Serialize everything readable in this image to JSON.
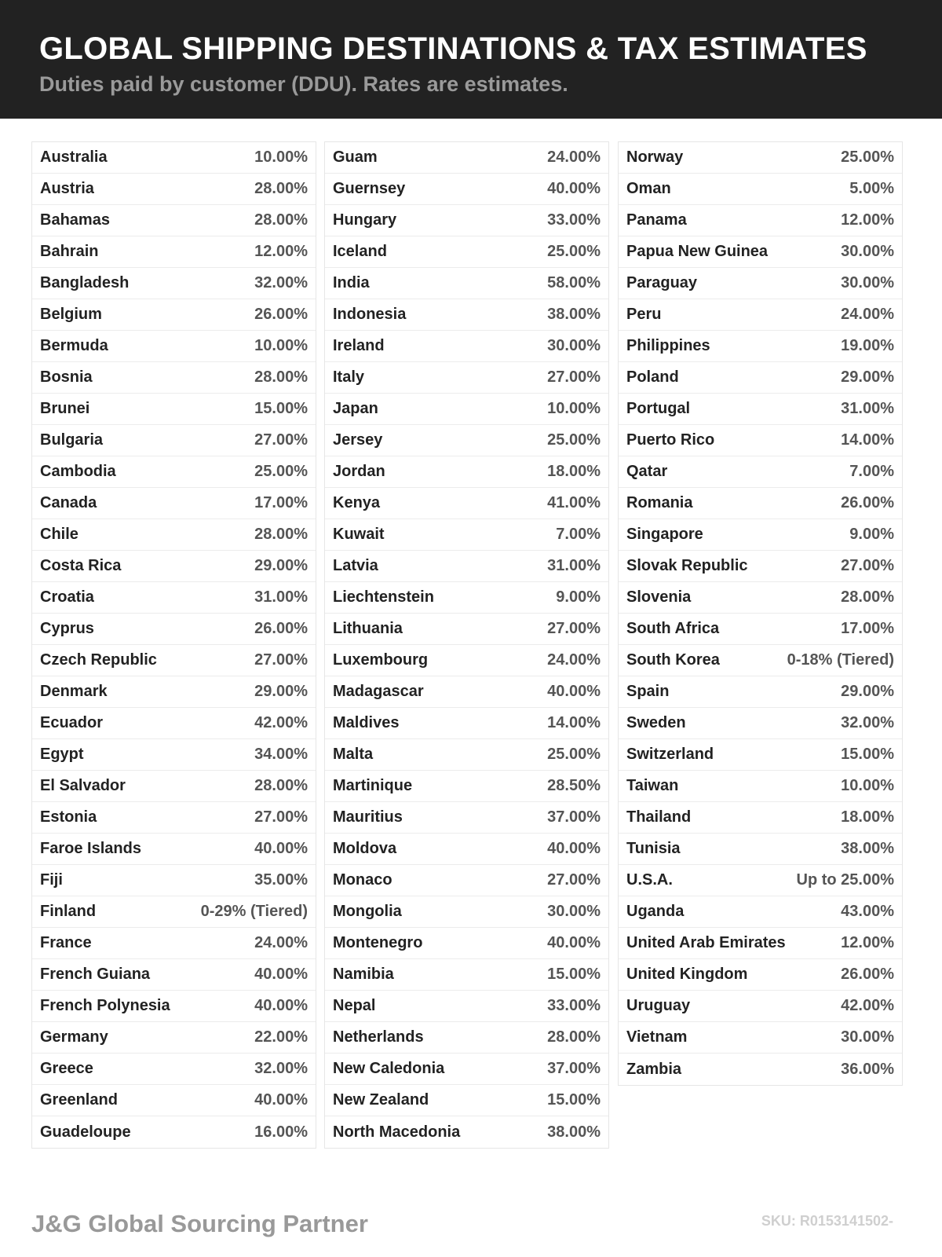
{
  "header": {
    "title": "GLOBAL SHIPPING DESTINATIONS & TAX ESTIMATES",
    "subtitle": "Duties paid by customer (DDU). Rates are estimates."
  },
  "columns": [
    [
      [
        "Australia",
        "10.00%"
      ],
      [
        "Austria",
        "28.00%"
      ],
      [
        "Bahamas",
        "28.00%"
      ],
      [
        "Bahrain",
        "12.00%"
      ],
      [
        "Bangladesh",
        "32.00%"
      ],
      [
        "Belgium",
        "26.00%"
      ],
      [
        "Bermuda",
        "10.00%"
      ],
      [
        "Bosnia",
        "28.00%"
      ],
      [
        "Brunei",
        "15.00%"
      ],
      [
        "Bulgaria",
        "27.00%"
      ],
      [
        "Cambodia",
        "25.00%"
      ],
      [
        "Canada",
        "17.00%"
      ],
      [
        "Chile",
        "28.00%"
      ],
      [
        "Costa Rica",
        "29.00%"
      ],
      [
        "Croatia",
        "31.00%"
      ],
      [
        "Cyprus",
        "26.00%"
      ],
      [
        "Czech Republic",
        "27.00%"
      ],
      [
        "Denmark",
        "29.00%"
      ],
      [
        "Ecuador",
        "42.00%"
      ],
      [
        "Egypt",
        "34.00%"
      ],
      [
        "El Salvador",
        "28.00%"
      ],
      [
        "Estonia",
        "27.00%"
      ],
      [
        "Faroe Islands",
        "40.00%"
      ],
      [
        "Fiji",
        "35.00%"
      ],
      [
        "Finland",
        "0-29% (Tiered)"
      ],
      [
        "France",
        "24.00%"
      ],
      [
        "French Guiana",
        "40.00%"
      ],
      [
        "French Polynesia",
        "40.00%"
      ],
      [
        "Germany",
        "22.00%"
      ],
      [
        "Greece",
        "32.00%"
      ],
      [
        "Greenland",
        "40.00%"
      ],
      [
        "Guadeloupe",
        "16.00%"
      ]
    ],
    [
      [
        "Guam",
        "24.00%"
      ],
      [
        "Guernsey",
        "40.00%"
      ],
      [
        "Hungary",
        "33.00%"
      ],
      [
        "Iceland",
        "25.00%"
      ],
      [
        "India",
        "58.00%"
      ],
      [
        "Indonesia",
        "38.00%"
      ],
      [
        "Ireland",
        "30.00%"
      ],
      [
        "Italy",
        "27.00%"
      ],
      [
        "Japan",
        "10.00%"
      ],
      [
        "Jersey",
        "25.00%"
      ],
      [
        "Jordan",
        "18.00%"
      ],
      [
        "Kenya",
        "41.00%"
      ],
      [
        "Kuwait",
        "7.00%"
      ],
      [
        "Latvia",
        "31.00%"
      ],
      [
        "Liechtenstein",
        "9.00%"
      ],
      [
        "Lithuania",
        "27.00%"
      ],
      [
        "Luxembourg",
        "24.00%"
      ],
      [
        "Madagascar",
        "40.00%"
      ],
      [
        "Maldives",
        "14.00%"
      ],
      [
        "Malta",
        "25.00%"
      ],
      [
        "Martinique",
        "28.50%"
      ],
      [
        "Mauritius",
        "37.00%"
      ],
      [
        "Moldova",
        "40.00%"
      ],
      [
        "Monaco",
        "27.00%"
      ],
      [
        "Mongolia",
        "30.00%"
      ],
      [
        "Montenegro",
        "40.00%"
      ],
      [
        "Namibia",
        "15.00%"
      ],
      [
        "Nepal",
        "33.00%"
      ],
      [
        "Netherlands",
        "28.00%"
      ],
      [
        "New Caledonia",
        "37.00%"
      ],
      [
        "New Zealand",
        "15.00%"
      ],
      [
        "North Macedonia",
        "38.00%"
      ]
    ],
    [
      [
        "Norway",
        "25.00%"
      ],
      [
        "Oman",
        "5.00%"
      ],
      [
        "Panama",
        "12.00%"
      ],
      [
        "Papua New Guinea",
        "30.00%"
      ],
      [
        "Paraguay",
        "30.00%"
      ],
      [
        "Peru",
        "24.00%"
      ],
      [
        "Philippines",
        "19.00%"
      ],
      [
        "Poland",
        "29.00%"
      ],
      [
        "Portugal",
        "31.00%"
      ],
      [
        "Puerto Rico",
        "14.00%"
      ],
      [
        "Qatar",
        "7.00%"
      ],
      [
        "Romania",
        "26.00%"
      ],
      [
        "Singapore",
        "9.00%"
      ],
      [
        "Slovak Republic",
        "27.00%"
      ],
      [
        "Slovenia",
        "28.00%"
      ],
      [
        "South Africa",
        "17.00%"
      ],
      [
        "South Korea",
        "0-18% (Tiered)"
      ],
      [
        "Spain",
        "29.00%"
      ],
      [
        "Sweden",
        "32.00%"
      ],
      [
        "Switzerland",
        "15.00%"
      ],
      [
        "Taiwan",
        "10.00%"
      ],
      [
        "Thailand",
        "18.00%"
      ],
      [
        "Tunisia",
        "38.00%"
      ],
      [
        "U.S.A.",
        "Up to 25.00%"
      ],
      [
        "Uganda",
        "43.00%"
      ],
      [
        "United Arab Emirates",
        "12.00%"
      ],
      [
        "United Kingdom",
        "26.00%"
      ],
      [
        "Uruguay",
        "42.00%"
      ],
      [
        "Vietnam",
        "30.00%"
      ],
      [
        "Zambia",
        "36.00%"
      ]
    ]
  ],
  "footer": {
    "brand": "J&G Global Sourcing Partner",
    "sku": "SKU: R0153141502-"
  }
}
